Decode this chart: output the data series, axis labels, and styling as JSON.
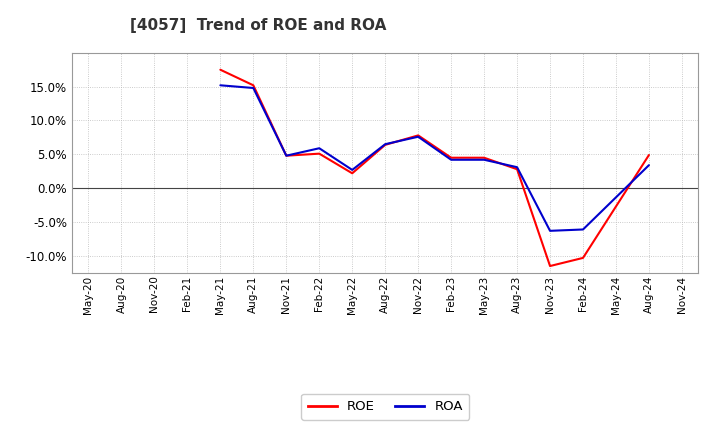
{
  "title": "[4057]  Trend of ROE and ROA",
  "x_labels": [
    "May-20",
    "Aug-20",
    "Nov-20",
    "Feb-21",
    "May-21",
    "Aug-21",
    "Nov-21",
    "Feb-22",
    "May-22",
    "Aug-22",
    "Nov-22",
    "Feb-23",
    "May-23",
    "Aug-23",
    "Nov-23",
    "Feb-24",
    "May-24",
    "Aug-24",
    "Nov-24"
  ],
  "roe": [
    null,
    null,
    null,
    null,
    17.5,
    15.2,
    4.8,
    5.1,
    2.2,
    6.4,
    7.8,
    4.5,
    4.5,
    2.8,
    -11.5,
    -10.3,
    null,
    4.9,
    null
  ],
  "roa": [
    null,
    null,
    null,
    null,
    15.2,
    14.8,
    4.8,
    5.9,
    2.7,
    6.5,
    7.6,
    4.2,
    4.2,
    3.1,
    -6.3,
    -6.1,
    null,
    3.4,
    null
  ],
  "roe_color": "#ff0000",
  "roa_color": "#0000cd",
  "ylim": [
    -12.5,
    20.0
  ],
  "yticks": [
    -10.0,
    -5.0,
    0.0,
    5.0,
    10.0,
    15.0
  ],
  "background_color": "#ffffff",
  "plot_bg_color": "#ffffff",
  "grid_color": "#bbbbbb",
  "linewidth": 1.5
}
